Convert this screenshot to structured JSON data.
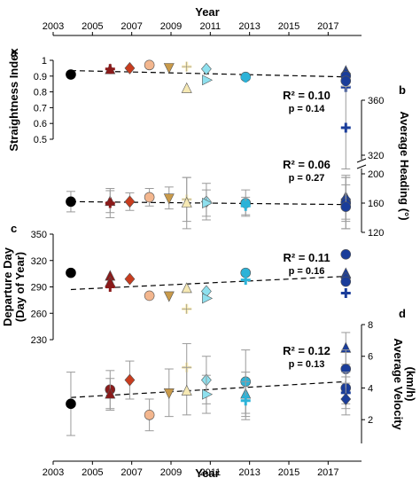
{
  "chart_data": {
    "type": "scatter",
    "x_axis": {
      "label": "Year",
      "ticks": [
        "2003",
        "2005",
        "2007",
        "2009",
        "2011",
        "2013",
        "2015",
        "2017"
      ],
      "range": [
        2003,
        2018.7
      ]
    },
    "years": [
      2003.9,
      2005.9,
      2006.9,
      2007.9,
      2008.9,
      2009.8,
      2010.8,
      2012.8,
      2017.9
    ],
    "colors": [
      "#000000",
      "#8b1a1a",
      "#c83c1e",
      "#f3b68e",
      "#c99a4a",
      "#f6e9b4",
      "#8ee0ee",
      "#2cb3d8",
      "#1a3d9a"
    ],
    "panels": [
      {
        "letter": "a",
        "ylabel": "Straightness Index",
        "side": "left",
        "yticks": [
          "0.5",
          "0.6",
          "0.7",
          "0.8",
          "0.9",
          "1"
        ],
        "yrange": [
          0.5,
          1.0
        ],
        "r2": "R² = 0.10",
        "p": "p = 0.14",
        "trend": [
          [
            2003.9,
            0.935
          ],
          [
            2017.9,
            0.895
          ]
        ],
        "points": [
          {
            "x": 2003.9,
            "y": 0.91,
            "m": "circle",
            "c": 0
          },
          {
            "x": 2005.9,
            "y": 0.94,
            "m": "triangle",
            "c": 1
          },
          {
            "x": 2005.9,
            "y": 0.945,
            "m": "plus",
            "c": 1
          },
          {
            "x": 2006.9,
            "y": 0.95,
            "m": "diamond",
            "c": 2
          },
          {
            "x": 2007.9,
            "y": 0.97,
            "m": "circle",
            "c": 3
          },
          {
            "x": 2008.9,
            "y": 0.955,
            "m": "tri-down",
            "c": 4
          },
          {
            "x": 2009.8,
            "y": 0.96,
            "m": "plus",
            "c": 5
          },
          {
            "x": 2009.8,
            "y": 0.82,
            "m": "triangle",
            "c": 5
          },
          {
            "x": 2010.8,
            "y": 0.945,
            "m": "diamond",
            "c": 6
          },
          {
            "x": 2010.8,
            "y": 0.875,
            "m": "tri-right",
            "c": 6
          },
          {
            "x": 2012.8,
            "y": 0.895,
            "m": "circle",
            "c": 7
          },
          {
            "x": 2012.8,
            "y": 0.89,
            "m": "plus",
            "c": 7
          },
          {
            "x": 2017.9,
            "y": 0.93,
            "m": "triangle",
            "c": 8
          },
          {
            "x": 2017.9,
            "y": 0.915,
            "m": "diamond",
            "c": 8
          },
          {
            "x": 2017.9,
            "y": 0.9,
            "m": "circle",
            "c": 8
          },
          {
            "x": 2017.9,
            "y": 0.87,
            "m": "circle",
            "c": 8
          },
          {
            "x": 2017.9,
            "y": 0.83,
            "m": "plus",
            "c": 8
          }
        ]
      },
      {
        "letter": "b",
        "ylabel": "Average Heading (°)",
        "side": "right",
        "yticks": [
          "120",
          "160",
          "200",
          "320",
          "360"
        ],
        "yticks_values": [
          120,
          160,
          200,
          320,
          360
        ],
        "r2": "R² = 0.06",
        "p": "p = 0.27",
        "trend": [
          [
            2003.9,
            162
          ],
          [
            2017.9,
            158
          ]
        ],
        "points": [
          {
            "x": 2003.9,
            "y": 162,
            "err": 14,
            "m": "circle",
            "c": 0
          },
          {
            "x": 2005.9,
            "y": 162,
            "err": 15,
            "m": "triangle",
            "c": 1
          },
          {
            "x": 2005.9,
            "y": 160,
            "err": 20,
            "m": "plus",
            "c": 1
          },
          {
            "x": 2006.9,
            "y": 162,
            "err": 12,
            "m": "diamond",
            "c": 2
          },
          {
            "x": 2007.9,
            "y": 168,
            "err": 12,
            "m": "circle",
            "c": 3
          },
          {
            "x": 2008.9,
            "y": 167,
            "err": 15,
            "m": "tri-down",
            "c": 4
          },
          {
            "x": 2009.8,
            "y": 165,
            "err": 30,
            "m": "plus",
            "c": 5
          },
          {
            "x": 2009.8,
            "y": 160,
            "err": 35,
            "m": "triangle",
            "c": 5
          },
          {
            "x": 2010.8,
            "y": 162,
            "err": 25,
            "m": "diamond",
            "c": 6
          },
          {
            "x": 2010.8,
            "y": 160,
            "err": 18,
            "m": "tri-right",
            "c": 6
          },
          {
            "x": 2012.8,
            "y": 160,
            "err": 18,
            "m": "circle",
            "c": 7
          },
          {
            "x": 2012.8,
            "y": 156,
            "err": 12,
            "m": "plus",
            "c": 7
          },
          {
            "x": 2017.9,
            "y": 168,
            "err": 30,
            "m": "triangle",
            "c": 8
          },
          {
            "x": 2017.9,
            "y": 165,
            "err": 30,
            "m": "diamond",
            "c": 8
          },
          {
            "x": 2017.9,
            "y": 160,
            "err": 35,
            "m": "circle",
            "c": 8
          },
          {
            "x": 2017.9,
            "y": 155,
            "err": 30,
            "m": "circle",
            "c": 8
          },
          {
            "x": 2017.9,
            "y": 340,
            "err": 30,
            "m": "plus",
            "c": 8
          }
        ]
      },
      {
        "letter": "c",
        "ylabel": "Departure Day (Day of Year)",
        "side": "left",
        "yticks": [
          "230",
          "260",
          "290",
          "320",
          "350"
        ],
        "yrange": [
          230,
          350
        ],
        "r2": "R² = 0.11",
        "p": "p = 0.16",
        "trend": [
          [
            2003.9,
            287
          ],
          [
            2017.9,
            302
          ]
        ],
        "points": [
          {
            "x": 2003.9,
            "y": 306,
            "m": "circle",
            "c": 0
          },
          {
            "x": 2005.9,
            "y": 302,
            "m": "triangle",
            "c": 1
          },
          {
            "x": 2005.9,
            "y": 295,
            "m": "triangle",
            "c": 1
          },
          {
            "x": 2005.9,
            "y": 290,
            "m": "plus",
            "c": 1
          },
          {
            "x": 2006.9,
            "y": 299,
            "m": "diamond",
            "c": 2
          },
          {
            "x": 2007.9,
            "y": 280,
            "m": "circle",
            "c": 3
          },
          {
            "x": 2008.9,
            "y": 280,
            "m": "tri-down",
            "c": 4
          },
          {
            "x": 2009.8,
            "y": 288,
            "m": "triangle",
            "c": 5
          },
          {
            "x": 2009.8,
            "y": 265,
            "m": "plus",
            "c": 5
          },
          {
            "x": 2010.8,
            "y": 285,
            "m": "diamond",
            "c": 6
          },
          {
            "x": 2010.8,
            "y": 277,
            "m": "tri-right",
            "c": 6
          },
          {
            "x": 2012.8,
            "y": 306,
            "m": "circle",
            "c": 7
          },
          {
            "x": 2012.8,
            "y": 298,
            "m": "plus",
            "c": 7
          },
          {
            "x": 2017.9,
            "y": 327,
            "m": "circle",
            "c": 8
          },
          {
            "x": 2017.9,
            "y": 305,
            "m": "triangle",
            "c": 8
          },
          {
            "x": 2017.9,
            "y": 300,
            "m": "diamond",
            "c": 8
          },
          {
            "x": 2017.9,
            "y": 296,
            "m": "circle",
            "c": 8
          },
          {
            "x": 2017.9,
            "y": 283,
            "m": "plus",
            "c": 8
          }
        ]
      },
      {
        "letter": "d",
        "ylabel": "Average Velocity (km/h)",
        "side": "right",
        "yticks": [
          "2",
          "4",
          "6",
          "8"
        ],
        "yrange": [
          0.5,
          8
        ],
        "r2": "R² = 0.12",
        "p": "p = 0.13",
        "trend": [
          [
            2003.9,
            3.4
          ],
          [
            2017.9,
            4.4
          ]
        ],
        "points": [
          {
            "x": 2003.9,
            "y": 3.0,
            "err": 2.0,
            "m": "circle",
            "c": 0
          },
          {
            "x": 2005.9,
            "y": 3.9,
            "err": 1.2,
            "m": "circle",
            "c": 1
          },
          {
            "x": 2005.9,
            "y": 3.6,
            "err": 1.0,
            "m": "triangle",
            "c": 1
          },
          {
            "x": 2006.9,
            "y": 4.5,
            "err": 1.2,
            "m": "diamond",
            "c": 2
          },
          {
            "x": 2007.9,
            "y": 2.3,
            "err": 1.0,
            "m": "circle",
            "c": 3
          },
          {
            "x": 2008.9,
            "y": 3.7,
            "err": 1.5,
            "m": "tri-down",
            "c": 4
          },
          {
            "x": 2009.8,
            "y": 5.3,
            "err": 1.5,
            "m": "plus",
            "c": 5
          },
          {
            "x": 2009.8,
            "y": 3.8,
            "err": 1.5,
            "m": "triangle",
            "c": 5
          },
          {
            "x": 2010.8,
            "y": 4.5,
            "err": 1.5,
            "m": "diamond",
            "c": 6
          },
          {
            "x": 2010.8,
            "y": 3.6,
            "err": 1.2,
            "m": "tri-right",
            "c": 6
          },
          {
            "x": 2012.8,
            "y": 4.4,
            "err": 2.0,
            "m": "circle",
            "c": 7
          },
          {
            "x": 2012.8,
            "y": 3.6,
            "err": 1.4,
            "m": "triangle",
            "c": 7
          },
          {
            "x": 2012.8,
            "y": 3.2,
            "err": 1.2,
            "m": "plus",
            "c": 7
          },
          {
            "x": 2017.9,
            "y": 6.5,
            "err": 1.0,
            "m": "triangle",
            "c": 8
          },
          {
            "x": 2017.9,
            "y": 5.2,
            "err": 1.2,
            "m": "circle",
            "c": 8
          },
          {
            "x": 2017.9,
            "y": 4.0,
            "err": 1.0,
            "m": "circle",
            "c": 8
          },
          {
            "x": 2017.9,
            "y": 3.7,
            "err": 1.0,
            "m": "plus",
            "c": 8
          },
          {
            "x": 2017.9,
            "y": 3.3,
            "err": 1.0,
            "m": "diamond",
            "c": 8
          }
        ]
      }
    ]
  }
}
